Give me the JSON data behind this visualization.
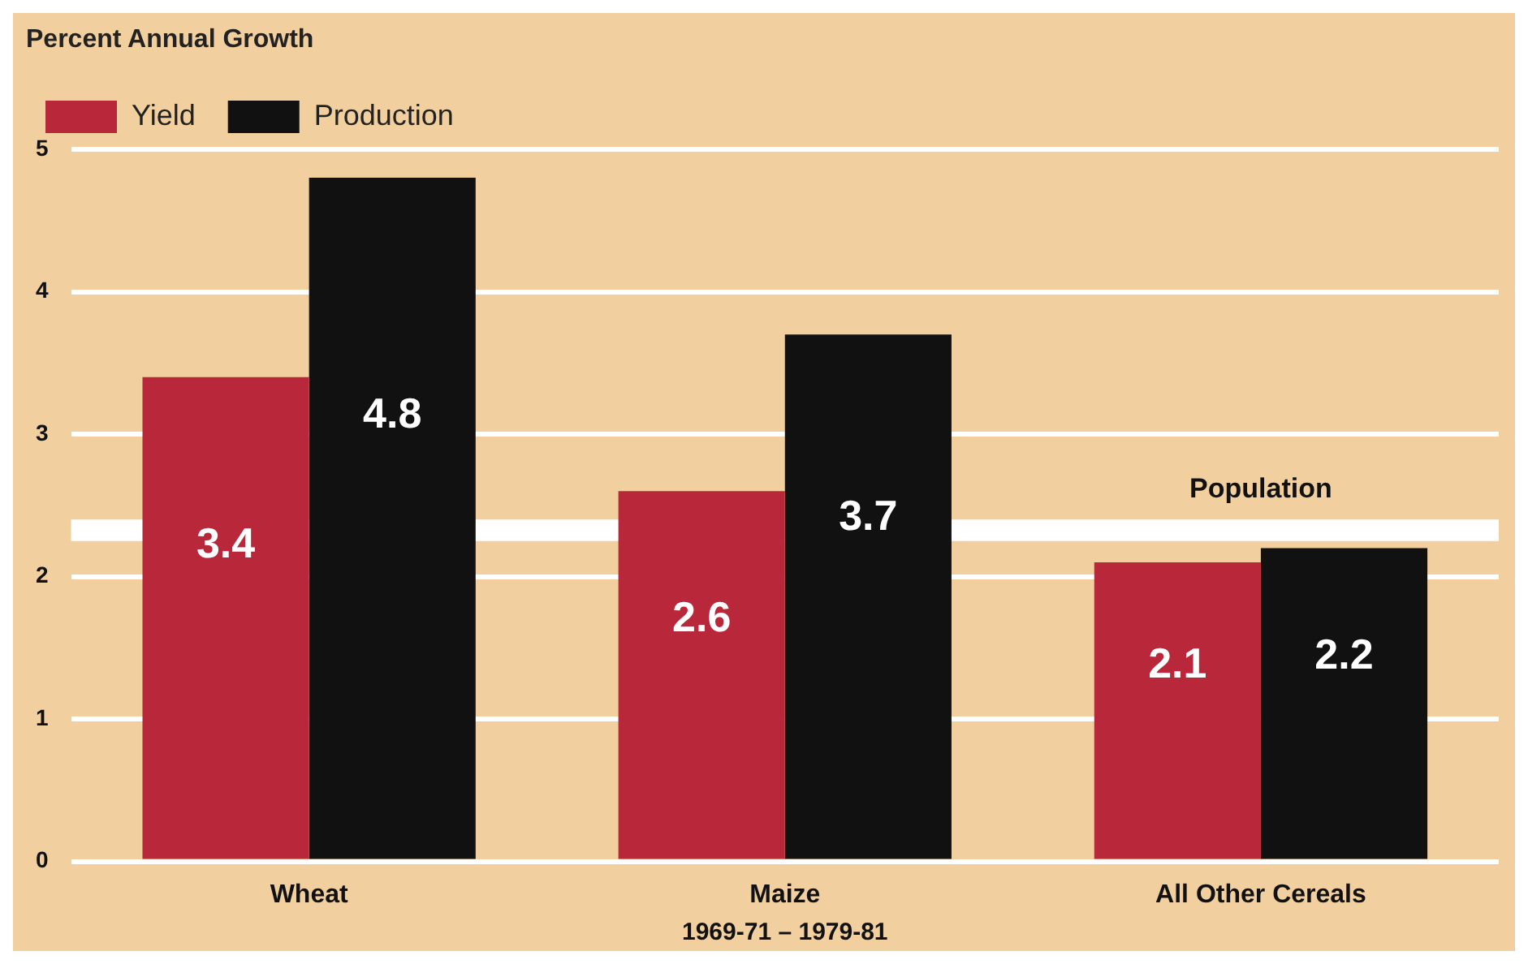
{
  "chart_data": {
    "type": "bar",
    "ylabel": "Percent Annual Growth",
    "xlabel": "1969-71 – 1979-81",
    "categories": [
      "Wheat",
      "Maize",
      "All Other Cereals"
    ],
    "series": [
      {
        "name": "Yield",
        "color": "#b8283a",
        "values": [
          3.4,
          2.6,
          2.1
        ]
      },
      {
        "name": "Production",
        "color": "#111111",
        "values": [
          4.8,
          3.7,
          2.2
        ]
      }
    ],
    "ylim": [
      0,
      5
    ],
    "yticks": [
      0,
      1,
      2,
      3,
      4,
      5
    ],
    "grid": "y",
    "legend": "top left",
    "data_labels": true,
    "bands": [
      {
        "axis": "y",
        "from": 2.25,
        "to": 2.4,
        "label": "Population",
        "color": "#ffffff"
      }
    ]
  }
}
